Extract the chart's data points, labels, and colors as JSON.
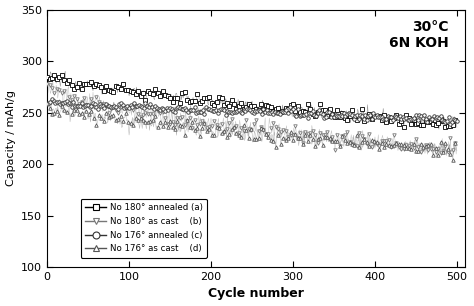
{
  "title_annotation": "30°C\n6N KOH",
  "xlabel": "Cycle number",
  "ylabel": "Capacity / mAh/g",
  "xlim": [
    0,
    510
  ],
  "ylim": [
    100,
    350
  ],
  "xticks": [
    0,
    100,
    200,
    300,
    400,
    500
  ],
  "yticks": [
    100,
    150,
    200,
    250,
    300,
    350
  ],
  "background_color": "#ffffff",
  "series": [
    {
      "label": "No 180° annealed (a)",
      "color": "#000000",
      "marker": "s",
      "start_y": 285,
      "end_y": 238,
      "noise": 3.0,
      "power": 0.75,
      "marker_step": 3
    },
    {
      "label": "No 180° as cast    (b)",
      "color": "#777777",
      "marker": "v",
      "start_y": 279,
      "end_y": 214,
      "noise": 4.5,
      "power": 0.55,
      "marker_step": 3
    },
    {
      "label": "No 176° annealed (c)",
      "color": "#333333",
      "marker": "o",
      "start_y": 260,
      "end_y": 243,
      "noise": 1.8,
      "power": 0.9,
      "marker_step": 2
    },
    {
      "label": "No 176° as cast    (d)",
      "color": "#555555",
      "marker": "^",
      "start_y": 258,
      "end_y": 214,
      "noise": 3.5,
      "power": 0.6,
      "marker_step": 3
    }
  ]
}
